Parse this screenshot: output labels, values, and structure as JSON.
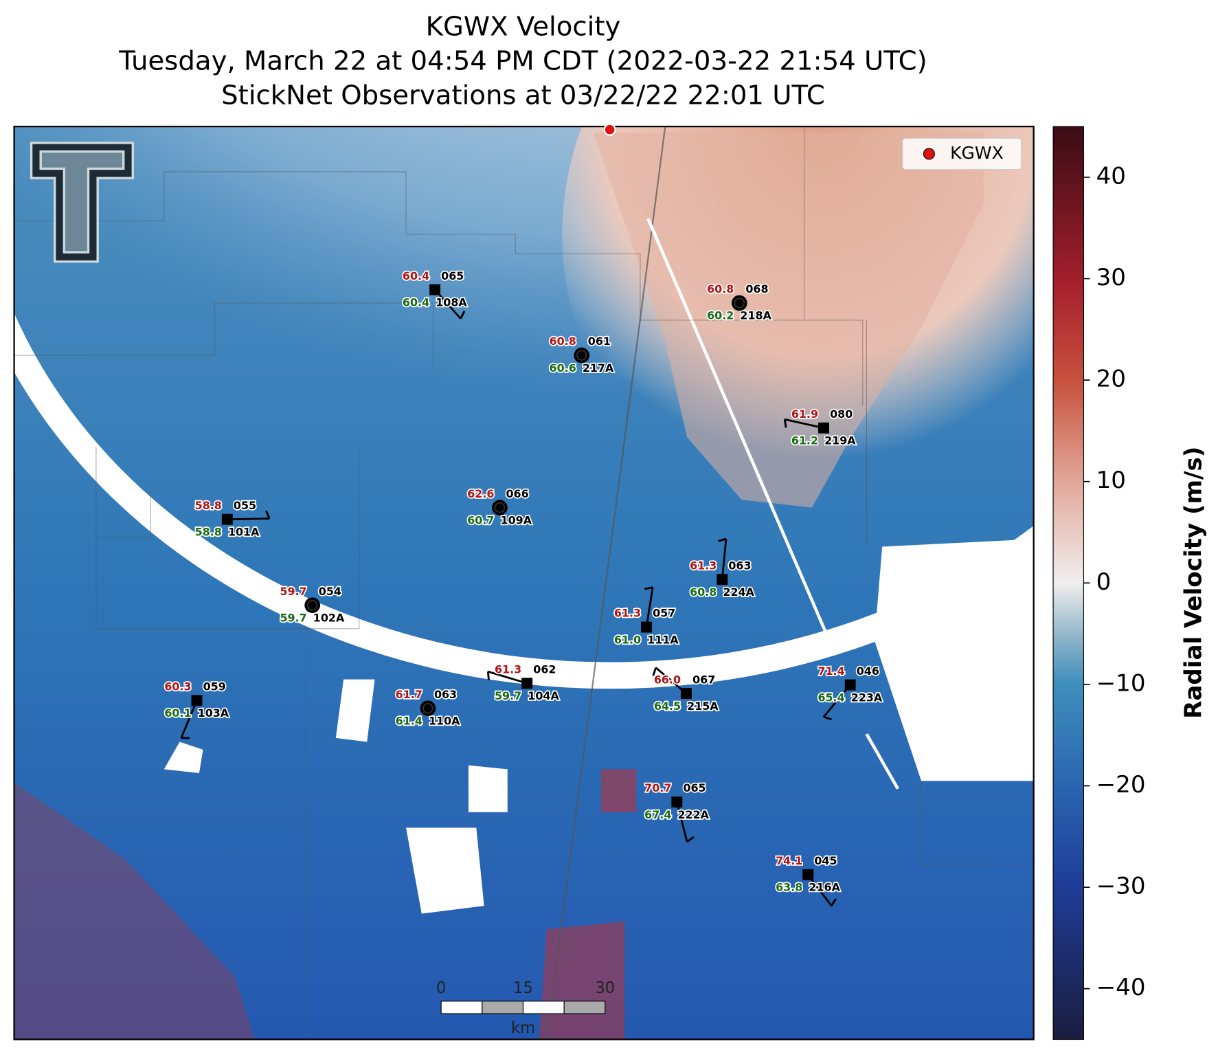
{
  "header": {
    "title": [
      "KGWX Velocity",
      "Tuesday, March 22 at 04:54 PM CDT (2022-03-22 21:54 UTC)",
      "StickNet Observations at 03/22/22 22:01 UTC"
    ]
  },
  "legend": {
    "label": "KGWX"
  },
  "stations": [
    {
      "id": "108A",
      "temperature": "60.4",
      "dewpoint": "60.4",
      "code": "065"
    },
    {
      "id": "217A",
      "temperature": "60.8",
      "dewpoint": "60.6",
      "code": "061"
    },
    {
      "id": "218A",
      "temperature": "60.8",
      "dewpoint": "60.2",
      "code": "068"
    },
    {
      "id": "219A",
      "temperature": "61.9",
      "dewpoint": "61.2",
      "code": "080"
    },
    {
      "id": "101A",
      "temperature": "58.8",
      "dewpoint": "58.8",
      "code": "055"
    },
    {
      "id": "109A",
      "temperature": "62.6",
      "dewpoint": "60.7",
      "code": "066"
    },
    {
      "id": "224A",
      "temperature": "61.3",
      "dewpoint": "60.8",
      "code": "063"
    },
    {
      "id": "102A",
      "temperature": "59.7",
      "dewpoint": "59.7",
      "code": "054"
    },
    {
      "id": "111A",
      "temperature": "61.3",
      "dewpoint": "61.0",
      "code": "057"
    },
    {
      "id": "104A",
      "temperature": "61.3",
      "dewpoint": "59.7",
      "code": "062"
    },
    {
      "id": "215A",
      "temperature": "66.0",
      "dewpoint": "64.5",
      "code": "067"
    },
    {
      "id": "223A",
      "temperature": "71.4",
      "dewpoint": "65.4",
      "code": "046"
    },
    {
      "id": "103A",
      "temperature": "60.3",
      "dewpoint": "60.1",
      "code": "059"
    },
    {
      "id": "110A",
      "temperature": "61.7",
      "dewpoint": "61.4",
      "code": "063"
    },
    {
      "id": "222A",
      "temperature": "70.7",
      "dewpoint": "67.4",
      "code": "065"
    },
    {
      "id": "216A",
      "temperature": "74.1",
      "dewpoint": "63.8",
      "code": "045"
    }
  ],
  "colorbar": {
    "label": "Radial Velocity (m/s)",
    "lim": [
      -45,
      45
    ],
    "ticks": [
      {
        "value": -40,
        "label": "−40"
      },
      {
        "value": -30,
        "label": "−30"
      },
      {
        "value": -20,
        "label": "−20"
      },
      {
        "value": -10,
        "label": "−10"
      },
      0,
      10,
      20,
      30,
      40
    ]
  },
  "scalebar": {
    "ticks": [
      0,
      15,
      30
    ],
    "unit": "km"
  }
}
